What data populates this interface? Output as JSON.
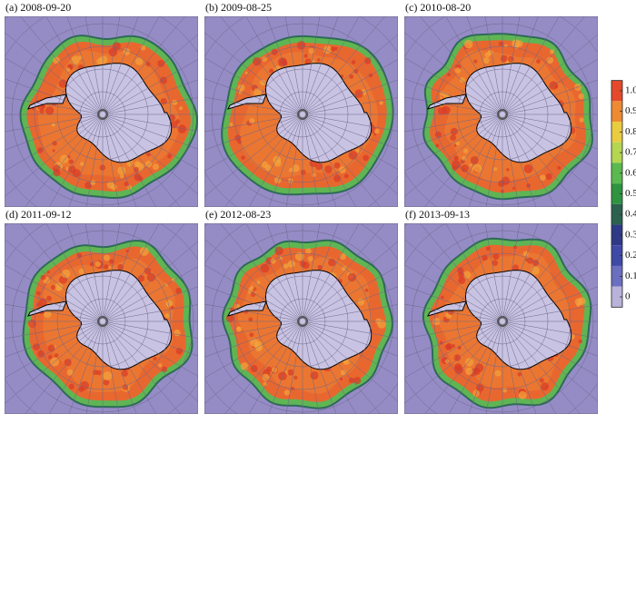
{
  "panels": [
    {
      "label": "(a)  2008-09-20"
    },
    {
      "label": "(b)  2009-08-25"
    },
    {
      "label": "(c)  2010-08-20"
    },
    {
      "label": "(d)  2011-09-12"
    },
    {
      "label": "(e)  2012-08-23"
    },
    {
      "label": "(f)  2013-09-13"
    }
  ],
  "colorbar": {
    "ticks": [
      {
        "value": 1,
        "label": "1.0"
      },
      0.9,
      0.8,
      0.7,
      0.6,
      0.5,
      0.4,
      0.3,
      0.2,
      0.1,
      0
    ],
    "colors": [
      "#e5492b",
      "#ee8a33",
      "#e9cc3f",
      "#b5d651",
      "#5ab94f",
      "#2f9440",
      "#2c6150",
      "#2f3a86",
      "#3e4aa6",
      "#6a6fbf",
      "#b9b2da"
    ]
  }
}
